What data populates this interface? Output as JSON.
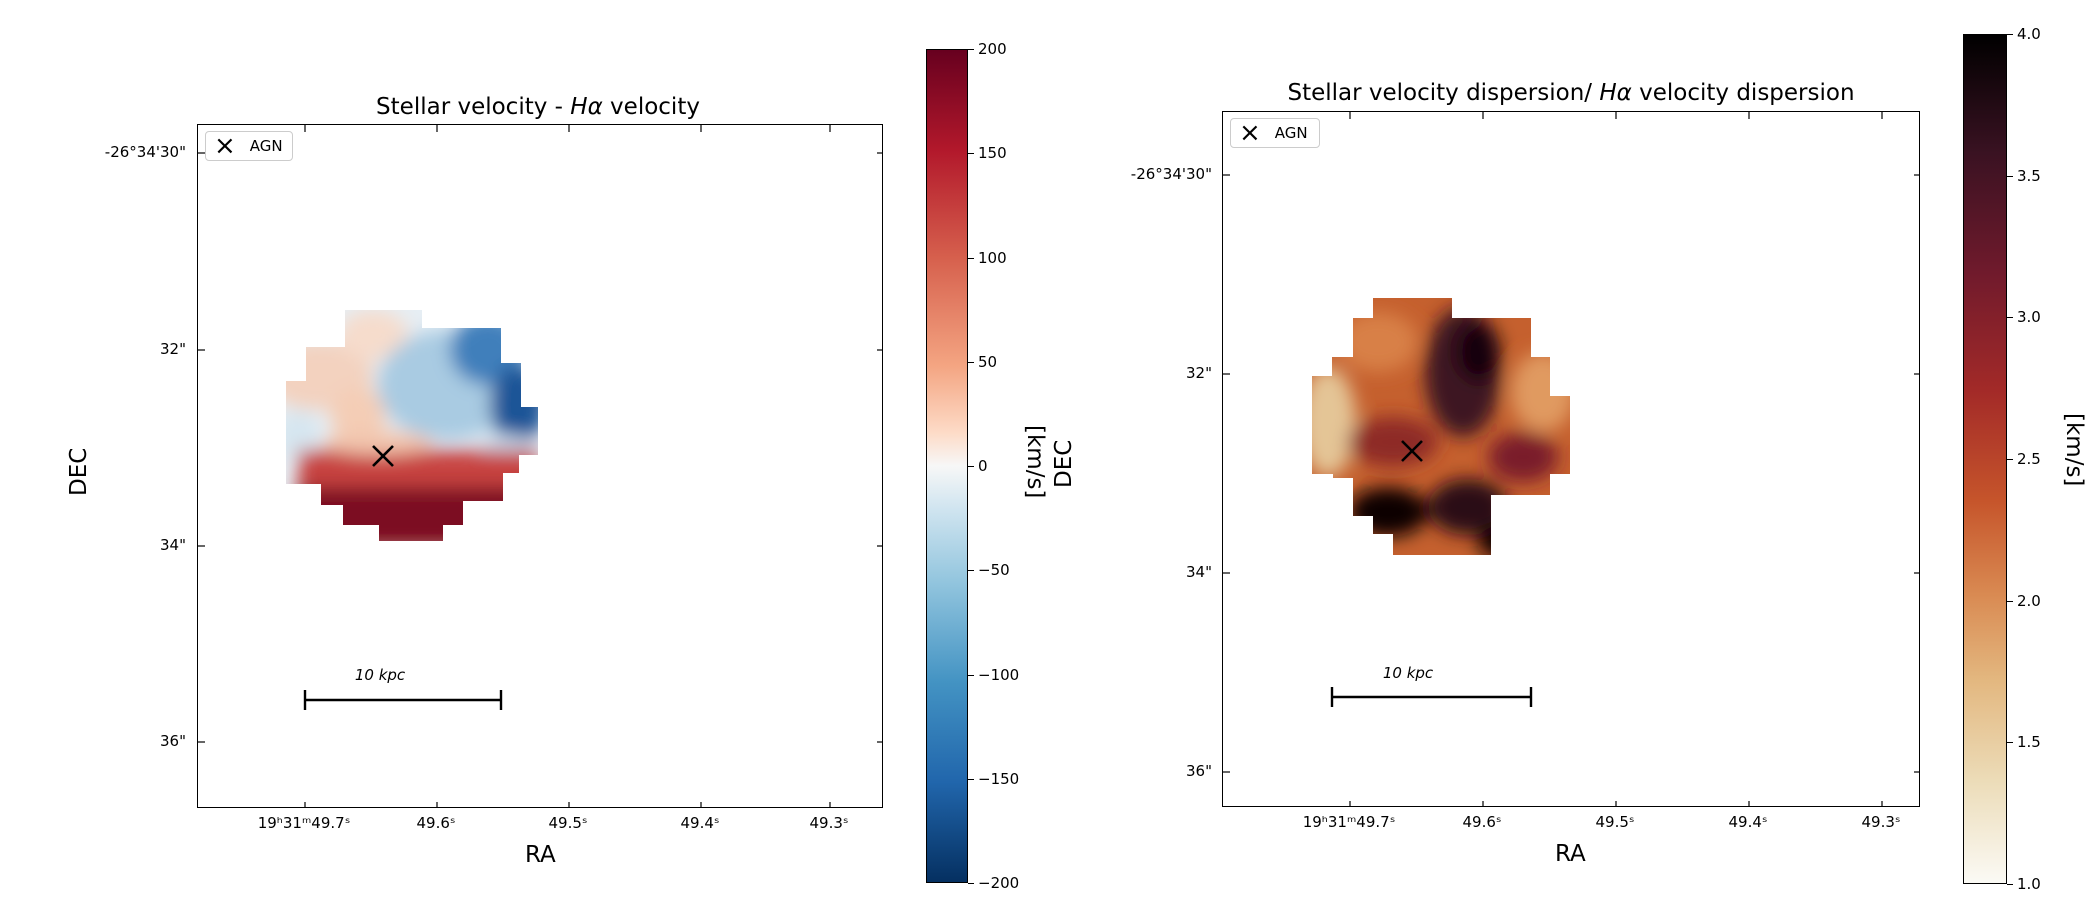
{
  "chart_data": [
    {
      "type": "heatmap",
      "title_prefix": "Stellar velocity - ",
      "title_italic": "Hα",
      "title_suffix": " velocity",
      "xlabel": "RA",
      "ylabel": "DEC",
      "x_ticks": [
        "19ʰ31ᵐ49.7ˢ",
        "49.6ˢ",
        "49.5ˢ",
        "49.4ˢ",
        "49.3ˢ"
      ],
      "y_ticks": [
        "-26°34'30\"",
        "32\"",
        "34\"",
        "36\""
      ],
      "legend": {
        "label": "AGN",
        "marker": "×"
      },
      "scalebar_label": "10 kpc",
      "colorbar": {
        "label": "[km/s]",
        "min": -200,
        "max": 200,
        "ticks": [
          "200",
          "150",
          "100",
          "50",
          "0",
          "−50",
          "−100",
          "−150",
          "−200"
        ],
        "colormap": [
          "#67001f",
          "#b2182b",
          "#d6604d",
          "#f4a582",
          "#fddbc7",
          "#f7f7f7",
          "#d1e5f0",
          "#92c5de",
          "#4393c3",
          "#2166ac",
          "#053061"
        ]
      }
    },
    {
      "type": "heatmap",
      "title_prefix": "Stellar velocity dispersion/ ",
      "title_italic": "Hα",
      "title_suffix": " velocity dispersion",
      "xlabel": "RA",
      "ylabel": "DEC",
      "x_ticks": [
        "19ʰ31ᵐ49.7ˢ",
        "49.6ˢ",
        "49.5ˢ",
        "49.4ˢ",
        "49.3ˢ"
      ],
      "y_ticks": [
        "-26°34'30\"",
        "32\"",
        "34\"",
        "36\""
      ],
      "legend": {
        "label": "AGN",
        "marker": "×"
      },
      "scalebar_label": "10 kpc",
      "colorbar": {
        "label": "[km/s]",
        "min": 1.0,
        "max": 4.0,
        "ticks": [
          "4.0",
          "3.5",
          "3.0",
          "2.5",
          "2.0",
          "1.5",
          "1.0"
        ],
        "colormap": [
          "#000000",
          "#3a1222",
          "#701a2c",
          "#a32a28",
          "#c6552b",
          "#d98a52",
          "#e3b77f",
          "#ecdcb8",
          "#fbfaf5"
        ]
      }
    }
  ]
}
